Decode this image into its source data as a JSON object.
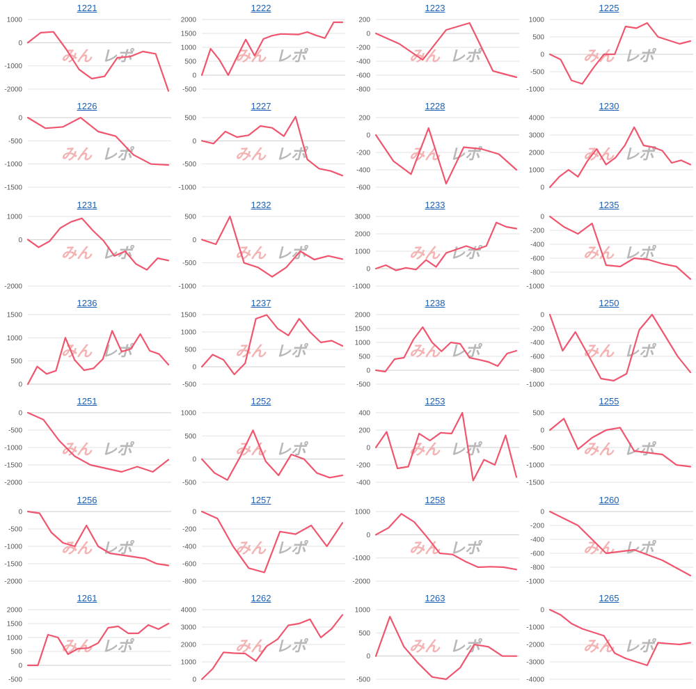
{
  "watermark": {
    "left": "みん",
    "right": "レポ"
  },
  "colors": {
    "line": "#f0556e",
    "grid": "#e2e2e2",
    "axis": "#cccccc",
    "title_link": "#1a5fb4"
  },
  "chart_data": [
    {
      "type": "line",
      "title": "1221",
      "ylim": [
        -2000,
        1000
      ],
      "yticks": [
        1000,
        0,
        -1000,
        -2000
      ],
      "x": [
        0,
        1,
        2,
        3,
        4,
        5,
        6,
        7,
        8,
        9,
        10,
        11
      ],
      "values": [
        0,
        430,
        470,
        -280,
        -1150,
        -1550,
        -1450,
        -650,
        -600,
        -380,
        -480,
        -2080
      ]
    },
    {
      "type": "line",
      "title": "1222",
      "ylim": [
        -500,
        2000
      ],
      "yticks": [
        2000,
        1500,
        1000,
        500,
        0,
        -500
      ],
      "x": [
        0,
        1,
        2,
        3,
        4,
        5,
        6,
        7,
        8,
        9,
        10,
        11,
        12,
        13,
        14,
        15,
        16
      ],
      "values": [
        0,
        950,
        550,
        0,
        650,
        1280,
        700,
        1300,
        1420,
        1480,
        1470,
        1460,
        1550,
        1430,
        1330,
        1900,
        1900
      ]
    },
    {
      "type": "line",
      "title": "1223",
      "ylim": [
        -800,
        200
      ],
      "yticks": [
        200,
        0,
        -200,
        -400,
        -600,
        -800
      ],
      "x": [
        0,
        1,
        2,
        3,
        4,
        5,
        6
      ],
      "values": [
        0,
        -150,
        -380,
        50,
        150,
        -540,
        -630
      ]
    },
    {
      "type": "line",
      "title": "1225",
      "ylim": [
        -1000,
        1000
      ],
      "yticks": [
        1000,
        500,
        0,
        -500,
        -1000
      ],
      "x": [
        0,
        1,
        2,
        3,
        4,
        5,
        6,
        7,
        8,
        9,
        10,
        11,
        12,
        13
      ],
      "values": [
        0,
        -150,
        -750,
        -850,
        -400,
        0,
        0,
        800,
        750,
        900,
        500,
        400,
        300,
        380
      ]
    },
    {
      "type": "line",
      "title": "1226",
      "ylim": [
        -1500,
        0
      ],
      "yticks": [
        0,
        -500,
        -1000,
        -1500
      ],
      "x": [
        0,
        1,
        2,
        3,
        4,
        5,
        6,
        7,
        8
      ],
      "values": [
        0,
        -230,
        -200,
        0,
        -300,
        -400,
        -800,
        -1000,
        -1020
      ]
    },
    {
      "type": "line",
      "title": "1227",
      "ylim": [
        -1000,
        500
      ],
      "yticks": [
        500,
        0,
        -500,
        -1000
      ],
      "x": [
        0,
        1,
        2,
        3,
        4,
        5,
        6,
        7,
        8,
        9,
        10,
        11,
        12
      ],
      "values": [
        0,
        -60,
        200,
        80,
        120,
        320,
        280,
        100,
        520,
        -400,
        -600,
        -650,
        -750
      ]
    },
    {
      "type": "line",
      "title": "1228",
      "ylim": [
        -600,
        200
      ],
      "yticks": [
        200,
        0,
        -200,
        -400,
        -600
      ],
      "x": [
        0,
        1,
        2,
        3,
        4,
        5,
        6,
        7,
        8
      ],
      "values": [
        0,
        -300,
        -450,
        80,
        -560,
        -140,
        -160,
        -220,
        -400
      ]
    },
    {
      "type": "line",
      "title": "1230",
      "ylim": [
        0,
        4000
      ],
      "yticks": [
        4000,
        3000,
        2000,
        1000,
        0
      ],
      "x": [
        0,
        1,
        2,
        3,
        4,
        5,
        6,
        7,
        8,
        9,
        10,
        11,
        12,
        13,
        14,
        15
      ],
      "values": [
        0,
        600,
        1000,
        600,
        1500,
        2200,
        1300,
        1700,
        2400,
        3450,
        2400,
        2300,
        2100,
        1400,
        1550,
        1300
      ]
    },
    {
      "type": "line",
      "title": "1231",
      "ylim": [
        -2000,
        1000
      ],
      "yticks": [
        1000,
        0,
        -2000
      ],
      "x": [
        0,
        1,
        2,
        3,
        4,
        5,
        6,
        7,
        8,
        9,
        10,
        11,
        12,
        13
      ],
      "values": [
        0,
        -330,
        -70,
        500,
        770,
        920,
        400,
        -50,
        -700,
        -500,
        -1050,
        -1300,
        -800,
        -900
      ]
    },
    {
      "type": "line",
      "title": "1232",
      "ylim": [
        -1000,
        500
      ],
      "yticks": [
        500,
        0,
        -500,
        -1000
      ],
      "x": [
        0,
        1,
        2,
        3,
        4,
        5,
        6,
        7,
        8,
        9,
        10
      ],
      "values": [
        0,
        -100,
        500,
        -500,
        -600,
        -800,
        -600,
        -250,
        -430,
        -350,
        -420
      ]
    },
    {
      "type": "line",
      "title": "1233",
      "ylim": [
        -1000,
        3000
      ],
      "yticks": [
        3000,
        2000,
        1000,
        0,
        -1000
      ],
      "x": [
        0,
        1,
        2,
        3,
        4,
        5,
        6,
        7,
        8,
        9,
        10,
        11,
        12,
        13,
        14
      ],
      "values": [
        0,
        200,
        -100,
        50,
        -50,
        500,
        100,
        900,
        1100,
        1300,
        1100,
        1300,
        2650,
        2400,
        2300
      ]
    },
    {
      "type": "line",
      "title": "1235",
      "ylim": [
        -1000,
        0
      ],
      "yticks": [
        0,
        -200,
        -400,
        -600,
        -800,
        -1000
      ],
      "x": [
        0,
        1,
        2,
        3,
        4,
        5,
        6,
        7,
        8,
        9,
        10
      ],
      "values": [
        0,
        -150,
        -250,
        -100,
        -700,
        -720,
        -600,
        -620,
        -680,
        -720,
        -900
      ]
    },
    {
      "type": "line",
      "title": "1236",
      "ylim": [
        0,
        1500
      ],
      "yticks": [
        1500,
        1000,
        500,
        0
      ],
      "x": [
        0,
        1,
        2,
        3,
        4,
        5,
        6,
        7,
        8,
        9,
        10,
        11,
        12,
        13,
        14,
        15
      ],
      "values": [
        0,
        380,
        220,
        290,
        1000,
        520,
        300,
        340,
        540,
        1150,
        700,
        760,
        1080,
        720,
        650,
        420
      ]
    },
    {
      "type": "line",
      "title": "1237",
      "ylim": [
        -500,
        1500
      ],
      "yticks": [
        1500,
        1000,
        500,
        0,
        -500
      ],
      "x": [
        0,
        1,
        2,
        3,
        4,
        5,
        6,
        7,
        8,
        9,
        10,
        11,
        12,
        13
      ],
      "values": [
        0,
        350,
        200,
        -220,
        100,
        1380,
        1490,
        1100,
        900,
        1380,
        1000,
        700,
        750,
        600
      ]
    },
    {
      "type": "line",
      "title": "1238",
      "ylim": [
        -500,
        2000
      ],
      "yticks": [
        2000,
        1500,
        1000,
        500,
        0,
        -500
      ],
      "x": [
        0,
        1,
        2,
        3,
        4,
        5,
        6,
        7,
        8,
        9,
        10,
        11,
        12,
        13,
        14,
        15
      ],
      "values": [
        0,
        -50,
        400,
        450,
        1100,
        1550,
        1000,
        680,
        1000,
        950,
        450,
        380,
        300,
        150,
        600,
        700
      ]
    },
    {
      "type": "line",
      "title": "1250",
      "ylim": [
        -1000,
        0
      ],
      "yticks": [
        0,
        -200,
        -400,
        -600,
        -800,
        -1000
      ],
      "x": [
        0,
        1,
        2,
        3,
        4,
        5,
        6,
        7,
        8,
        9,
        10,
        11
      ],
      "values": [
        0,
        -520,
        -250,
        -580,
        -920,
        -950,
        -850,
        -220,
        0,
        -300,
        -600,
        -830
      ]
    },
    {
      "type": "line",
      "title": "1251",
      "ylim": [
        -2000,
        0
      ],
      "yticks": [
        0,
        -500,
        -1000,
        -1500,
        -2000
      ],
      "x": [
        0,
        1,
        2,
        3,
        4,
        5,
        6,
        7,
        8,
        9
      ],
      "values": [
        0,
        -200,
        -800,
        -1250,
        -1500,
        -1600,
        -1700,
        -1550,
        -1700,
        -1350
      ]
    },
    {
      "type": "line",
      "title": "1252",
      "ylim": [
        -500,
        1000
      ],
      "yticks": [
        1000,
        500,
        0,
        -500
      ],
      "x": [
        0,
        1,
        2,
        3,
        4,
        5,
        6,
        7,
        8,
        9,
        10,
        11
      ],
      "values": [
        0,
        -300,
        -450,
        50,
        620,
        -50,
        -350,
        100,
        0,
        -300,
        -400,
        -350
      ]
    },
    {
      "type": "line",
      "title": "1253",
      "ylim": [
        -400,
        400
      ],
      "yticks": [
        400,
        200,
        0,
        -200,
        -400
      ],
      "x": [
        0,
        1,
        2,
        3,
        4,
        5,
        6,
        7,
        8,
        9,
        10,
        11,
        12,
        13
      ],
      "values": [
        0,
        180,
        -240,
        -220,
        160,
        80,
        170,
        160,
        400,
        -380,
        -140,
        -200,
        140,
        -340
      ]
    },
    {
      "type": "line",
      "title": "1255",
      "ylim": [
        -1500,
        500
      ],
      "yticks": [
        500,
        0,
        -500,
        -1000,
        -1500
      ],
      "x": [
        0,
        1,
        2,
        3,
        4,
        5,
        6,
        7,
        8,
        9,
        10
      ],
      "values": [
        0,
        330,
        -550,
        -220,
        0,
        70,
        -600,
        -650,
        -700,
        -1000,
        -1050
      ]
    },
    {
      "type": "line",
      "title": "1256",
      "ylim": [
        -2000,
        0
      ],
      "yticks": [
        0,
        -500,
        -1000,
        -1500,
        -2000
      ],
      "x": [
        0,
        1,
        2,
        3,
        4,
        5,
        6,
        7,
        8,
        9,
        10,
        11,
        12
      ],
      "values": [
        0,
        -50,
        -600,
        -900,
        -1000,
        -400,
        -1000,
        -1200,
        -1250,
        -1300,
        -1350,
        -1500,
        -1550
      ]
    },
    {
      "type": "line",
      "title": "1257",
      "ylim": [
        -800,
        0
      ],
      "yticks": [
        0,
        -200,
        -400,
        -600,
        -800
      ],
      "x": [
        0,
        1,
        2,
        3,
        4,
        5,
        6,
        7,
        8,
        9
      ],
      "values": [
        0,
        -80,
        -400,
        -650,
        -700,
        -230,
        -260,
        -160,
        -400,
        -130
      ]
    },
    {
      "type": "line",
      "title": "1258",
      "ylim": [
        -2000,
        1000
      ],
      "yticks": [
        1000,
        0,
        -1000,
        -2000
      ],
      "x": [
        0,
        1,
        2,
        3,
        4,
        5,
        6,
        7,
        8,
        9,
        10,
        11
      ],
      "values": [
        0,
        300,
        900,
        550,
        -100,
        -800,
        -850,
        -1150,
        -1400,
        -1380,
        -1400,
        -1500
      ]
    },
    {
      "type": "line",
      "title": "1260",
      "ylim": [
        -1000,
        0
      ],
      "yticks": [
        0,
        -200,
        -400,
        -600,
        -800,
        -1000
      ],
      "x": [
        0,
        1,
        2,
        3,
        4,
        5
      ],
      "values": [
        0,
        -200,
        -600,
        -550,
        -700,
        -920
      ]
    },
    {
      "type": "line",
      "title": "1261",
      "ylim": [
        -500,
        2000
      ],
      "yticks": [
        2000,
        1500,
        1000,
        500,
        0,
        -500
      ],
      "x": [
        0,
        1,
        2,
        3,
        4,
        5,
        6,
        7,
        8,
        9,
        10,
        11,
        12,
        13,
        14
      ],
      "values": [
        0,
        0,
        1100,
        1000,
        400,
        600,
        620,
        800,
        1350,
        1400,
        1150,
        1150,
        1450,
        1300,
        1500
      ]
    },
    {
      "type": "line",
      "title": "1262",
      "ylim": [
        0,
        4000
      ],
      "yticks": [
        4000,
        3000,
        2000,
        1000,
        0
      ],
      "x": [
        0,
        1,
        2,
        3,
        4,
        5,
        6,
        7,
        8,
        9,
        10,
        11,
        12,
        13
      ],
      "values": [
        0,
        600,
        1550,
        1500,
        1480,
        1050,
        1900,
        2300,
        3100,
        3200,
        3450,
        2400,
        2900,
        3700
      ]
    },
    {
      "type": "line",
      "title": "1263",
      "ylim": [
        -500,
        1000
      ],
      "yticks": [
        1000,
        500,
        0,
        -500
      ],
      "x": [
        0,
        1,
        2,
        3,
        4,
        5,
        6,
        7,
        8,
        9,
        10
      ],
      "values": [
        0,
        850,
        200,
        -150,
        -450,
        -500,
        -250,
        250,
        200,
        0,
        0
      ]
    },
    {
      "type": "line",
      "title": "1265",
      "ylim": [
        -4000,
        0
      ],
      "yticks": [
        0,
        -1000,
        -2000,
        -3000,
        -4000
      ],
      "x": [
        0,
        1,
        2,
        3,
        4,
        5,
        6,
        7,
        8,
        9,
        10,
        11,
        12,
        13
      ],
      "values": [
        0,
        -300,
        -800,
        -1100,
        -1300,
        -1500,
        -2500,
        -2800,
        -3000,
        -3200,
        -1900,
        -1950,
        -2000,
        -1900
      ]
    }
  ]
}
